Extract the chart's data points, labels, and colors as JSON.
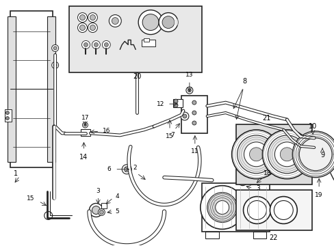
{
  "bg_color": "#ffffff",
  "line_color": "#222222",
  "inset_bg": "#e8e8e8",
  "box21_bg": "#dcdcdc",
  "box22_bg": "#f5f5f5",
  "figsize": [
    4.89,
    3.6
  ],
  "dpi": 100
}
